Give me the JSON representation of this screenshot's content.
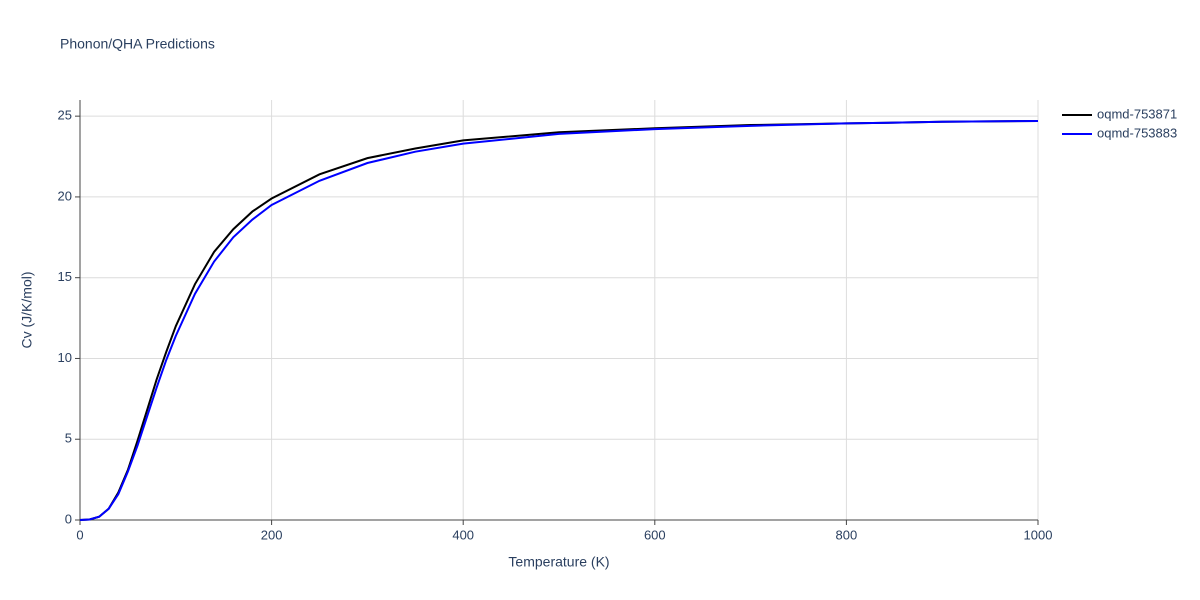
{
  "chart_data": {
    "type": "line",
    "title": "Phonon/QHA Predictions",
    "x_label": "Temperature (K)",
    "y_label": "Cv (J/K/mol)",
    "x": [
      0,
      10,
      20,
      30,
      40,
      50,
      60,
      70,
      80,
      90,
      100,
      120,
      140,
      160,
      180,
      200,
      250,
      300,
      350,
      400,
      500,
      600,
      700,
      800,
      900,
      1000
    ],
    "series": [
      {
        "name": "oqmd-753871",
        "color": "#000000",
        "values": [
          0,
          0.03,
          0.2,
          0.7,
          1.7,
          3.1,
          4.9,
          6.8,
          8.7,
          10.4,
          12.0,
          14.6,
          16.6,
          18.0,
          19.1,
          19.9,
          21.4,
          22.4,
          23.0,
          23.5,
          24.0,
          24.25,
          24.45,
          24.55,
          24.65,
          24.7
        ]
      },
      {
        "name": "oqmd-753883",
        "color": "#0000ff",
        "values": [
          0,
          0.03,
          0.2,
          0.7,
          1.6,
          3.0,
          4.6,
          6.4,
          8.2,
          9.9,
          11.4,
          14.0,
          16.0,
          17.5,
          18.6,
          19.5,
          21.0,
          22.1,
          22.8,
          23.3,
          23.9,
          24.2,
          24.4,
          24.55,
          24.65,
          24.7
        ]
      }
    ],
    "xlim": [
      0,
      1000
    ],
    "xticks": [
      0,
      200,
      400,
      600,
      800,
      1000
    ],
    "ylim": [
      0,
      26
    ],
    "yticks": [
      0,
      5,
      10,
      15,
      20,
      25
    ],
    "grid": true,
    "legend": "right"
  }
}
